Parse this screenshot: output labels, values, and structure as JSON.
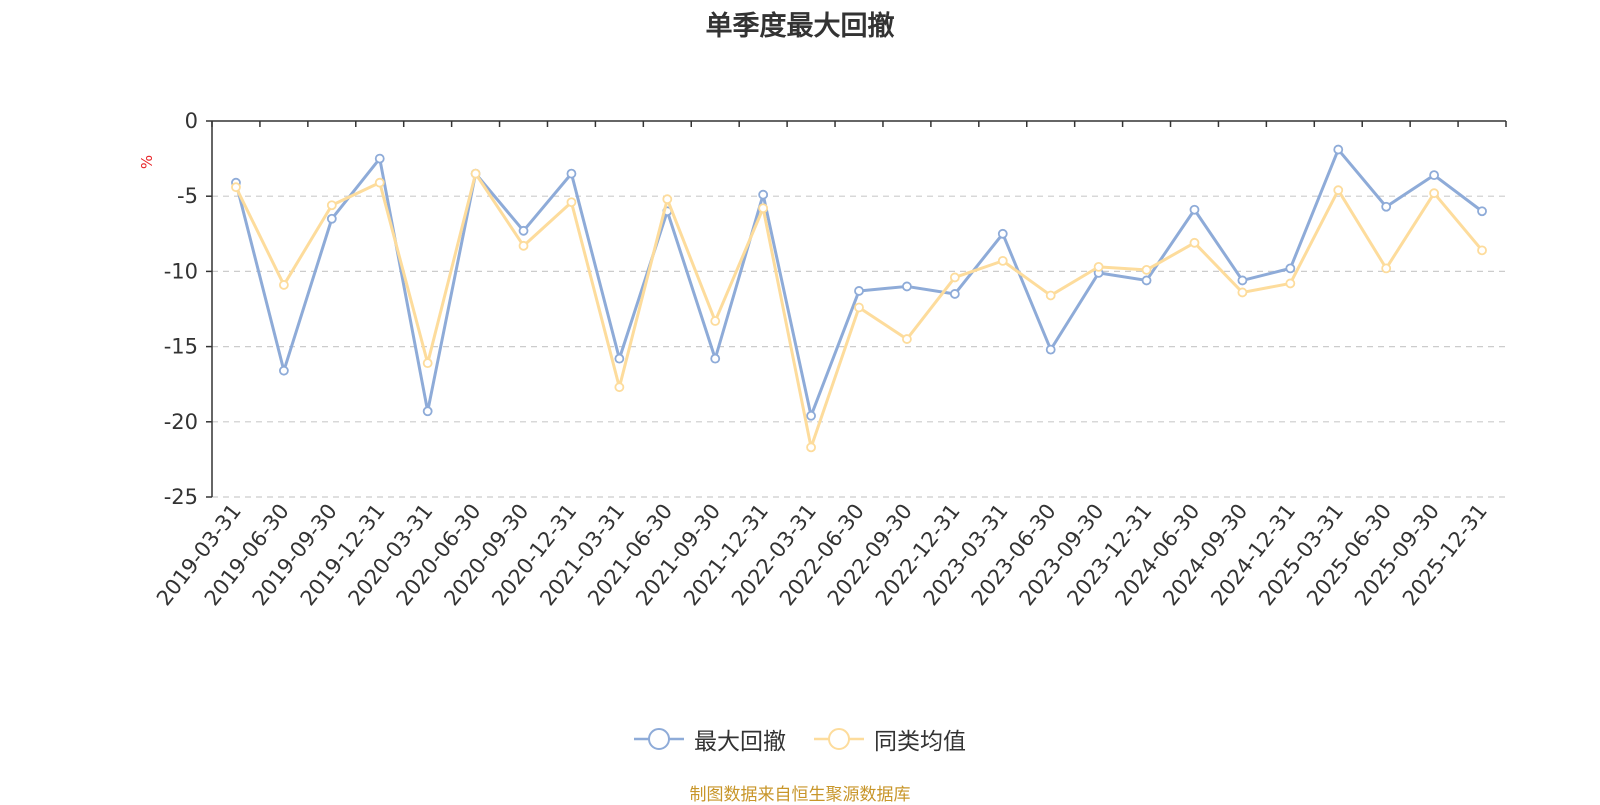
{
  "chart_data": {
    "type": "line",
    "title": "单季度最大回撤",
    "ylabel": "%",
    "ylim": [
      -25,
      0
    ],
    "yticks": [
      0,
      -5,
      -10,
      -15,
      -20,
      -25
    ],
    "grid": true,
    "legend_position": "bottom-center",
    "categories": [
      "2019-03-31",
      "2019-06-30",
      "2019-09-30",
      "2019-12-31",
      "2020-03-31",
      "2020-06-30",
      "2020-09-30",
      "2020-12-31",
      "2021-03-31",
      "2021-06-30",
      "2021-09-30",
      "2021-12-31",
      "2022-03-31",
      "2022-06-30",
      "2022-09-30",
      "2022-12-31",
      "2023-03-31",
      "2023-06-30",
      "2023-09-30",
      "2023-12-31",
      "2024-06-30",
      "2024-09-30",
      "2024-12-31",
      "2025-03-31",
      "2025-06-30",
      "2025-09-30",
      "2025-12-31"
    ],
    "series": [
      {
        "name": "最大回撤",
        "color": "#8eabd8",
        "values": [
          -4.1,
          -16.6,
          -6.5,
          -2.5,
          -19.3,
          -3.5,
          -7.3,
          -3.5,
          -15.8,
          -6.0,
          -15.8,
          -4.9,
          -19.6,
          -11.3,
          -11.0,
          -11.5,
          -7.5,
          -15.2,
          -10.1,
          -10.6,
          -5.9,
          -10.6,
          -9.8,
          -1.9,
          -5.7,
          -3.6,
          -6.0
        ]
      },
      {
        "name": "同类均值",
        "color": "#fddc9c",
        "values": [
          -4.4,
          -10.9,
          -5.6,
          -4.1,
          -16.1,
          -3.5,
          -8.3,
          -5.4,
          -17.7,
          -5.2,
          -13.3,
          -5.8,
          -21.7,
          -12.4,
          -14.5,
          -10.4,
          -9.3,
          -11.6,
          -9.7,
          -9.9,
          -8.1,
          -11.4,
          -10.8,
          -4.6,
          -9.8,
          -4.8,
          -8.6
        ]
      }
    ]
  },
  "source_note": "制图数据来自恒生聚源数据库"
}
